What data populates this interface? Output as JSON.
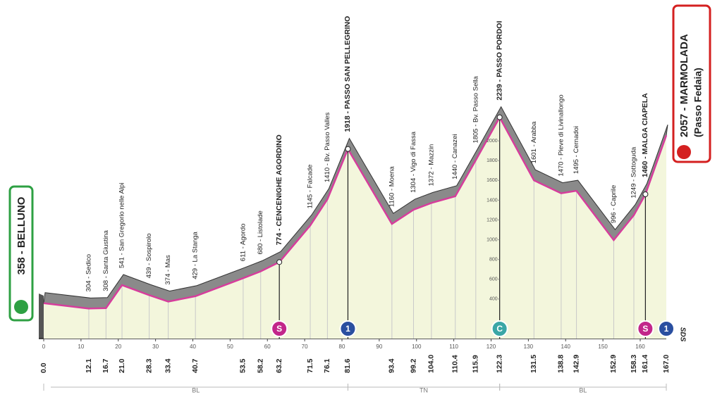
{
  "chart_data": {
    "type": "area",
    "x": [
      0,
      12.1,
      16.7,
      21.0,
      28.3,
      33.4,
      40.7,
      53.5,
      58.2,
      63.2,
      71.5,
      76.1,
      81.6,
      93.4,
      99.2,
      104.0,
      110.4,
      115.9,
      122.3,
      131.5,
      138.8,
      142.9,
      152.9,
      158.3,
      161.4,
      167.0
    ],
    "x_labels": [
      "0.0",
      "12.1",
      "16.7",
      "21.0",
      "28.3",
      "33.4",
      "40.7",
      "53.5",
      "58.2",
      "63.2",
      "71.5",
      "76.1",
      "81.6",
      "93.4",
      "99.2",
      "104.0",
      "110.4",
      "115.9",
      "122.3",
      "131.5",
      "138.8",
      "142.9",
      "152.9",
      "158.3",
      "161.4",
      "167.0"
    ],
    "values": [
      358,
      304,
      308,
      541,
      439,
      374,
      429,
      611,
      680,
      774,
      1145,
      1410,
      1918,
      1160,
      1304,
      1372,
      1440,
      1805,
      2239,
      1601,
      1470,
      1495,
      996,
      1249,
      1460,
      2057
    ],
    "labels": [
      null,
      "304 - Sedico",
      "308 - Santa Giustina",
      "541 - San Gregorio nelle Alpi",
      "439 - Sospirolo",
      "374 - Mas",
      "429 - La Stanga",
      "611 - Agordo",
      "680 - Listolade",
      "774 - CENCENIGHE AGORDINO",
      "1145 - Falcade",
      "1410 - Bv. Passo Valles",
      "1918 - PASSO SAN PELLEGRINO",
      "1160 - Moena",
      "1304 - Vigo di Fassa",
      "1372 - Mazzin",
      "1440 - Canazei",
      "1805 - Bv. Passo Sella",
      "2239 - PASSO PORDOI",
      "1601 - Arabba",
      "1470 - Pieve di Livinallongo",
      "1495 - Cernadoi",
      "996 - Caprile",
      "1249 - Sottoguda",
      "1460 - MALGA CIAPELA",
      null
    ],
    "major": [
      9,
      12,
      18,
      24
    ],
    "start": {
      "label": "358 - BELLUNO"
    },
    "finish": {
      "label": "2057 - MARMOLADA",
      "sublabel": "(Passo Fedaia)"
    },
    "markers": [
      {
        "x": 63.2,
        "text": "S",
        "color": "#c2268a"
      },
      {
        "x": 81.6,
        "text": "1",
        "color": "#2a4fa0"
      },
      {
        "x": 122.3,
        "text": "C",
        "color": "#3aa6a6"
      },
      {
        "x": 161.4,
        "text": "S",
        "color": "#c2268a"
      },
      {
        "x": 167.0,
        "text": "1",
        "color": "#2a4fa0"
      }
    ],
    "xlim": [
      0,
      167
    ],
    "xticks": [
      0,
      10,
      20,
      30,
      40,
      50,
      60,
      70,
      80,
      90,
      100,
      110,
      120,
      130,
      140,
      150,
      160
    ],
    "ylim": [
      0,
      2400
    ],
    "yticks": [
      400,
      600,
      800,
      1000,
      1200,
      1400,
      1600,
      1800,
      2000
    ],
    "regions": [
      {
        "label": "BL",
        "from": 0,
        "to": 81.6
      },
      {
        "label": "TN",
        "from": 81.6,
        "to": 122.3
      },
      {
        "label": "BL",
        "from": 122.3,
        "to": 167.0
      }
    ],
    "brand": "SDS",
    "color": "#d63d9c"
  }
}
